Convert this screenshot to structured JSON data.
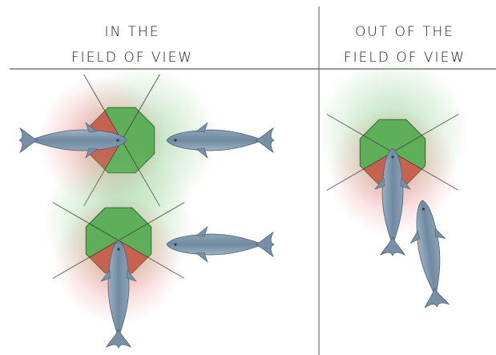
{
  "panels": [
    {
      "title_lines": [
        "IN THE",
        "FIELD OF VIEW"
      ]
    },
    {
      "title_lines": [
        "OUT OF THE",
        "FIELD OF VIEW"
      ]
    }
  ]
}
